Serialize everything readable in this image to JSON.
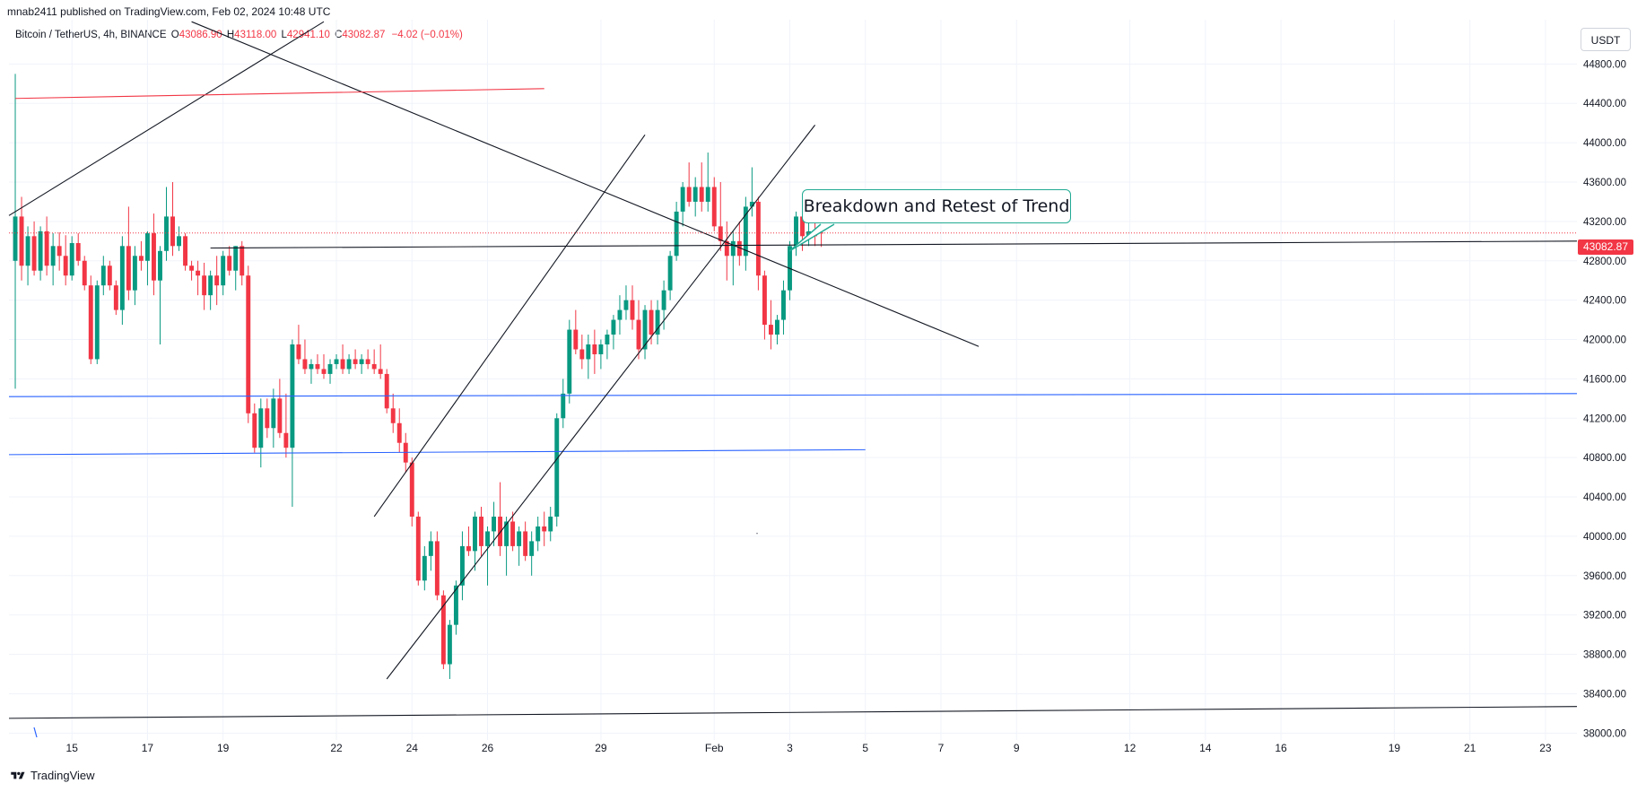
{
  "header": {
    "publisher": "mnab2411 published on TradingView.com, Feb 02, 2024 10:48 UTC",
    "symbol": "Bitcoin / TetherUS, 4h, BINANCE",
    "open_label": "O",
    "open_value": "43086.90",
    "high_label": "H",
    "high_value": "43118.00",
    "low_label": "L",
    "low_value": "42941.10",
    "close_label": "C",
    "close_value": "43082.87",
    "change": "−4.02 (−0.01%)"
  },
  "currency": "USDT",
  "last_price": "43082.87",
  "annotation": "Breakdown and Retest of Trend",
  "footer": {
    "brand": "TradingView"
  },
  "colors": {
    "up": "#089981",
    "down": "#f23645",
    "blue_line": "#2962ff",
    "red_line": "#f23645",
    "trend": "#131722",
    "callout_border": "#22ab94"
  },
  "icons": [
    "tradingview-logo-icon"
  ],
  "chart_data": {
    "type": "candlestick",
    "timeframe": "4h",
    "y_axis": {
      "range": [
        37930,
        45250
      ],
      "ticks": [
        38000,
        38400,
        38800,
        39200,
        39600,
        40000,
        40400,
        40800,
        41200,
        41600,
        42000,
        42400,
        42800,
        43200,
        43600,
        44000,
        44400,
        44800
      ],
      "tick_labels": [
        "38000.00",
        "38400.00",
        "38800.00",
        "39200.00",
        "39600.00",
        "40000.00",
        "40400.00",
        "40800.00",
        "41200.00",
        "41600.00",
        "42000.00",
        "42400.00",
        "42800.00",
        "43200.00",
        "43600.00",
        "44000.00",
        "44400.00",
        "44800.00"
      ]
    },
    "x_axis": {
      "range": [
        "2024-01-13T08:00",
        "2024-02-23T20:00"
      ],
      "tick_dates": [
        "2024-01-15T00:00",
        "2024-01-17T00:00",
        "2024-01-19T00:00",
        "2024-01-22T00:00",
        "2024-01-24T00:00",
        "2024-01-26T00:00",
        "2024-01-29T00:00",
        "2024-02-01T00:00",
        "2024-02-03T00:00",
        "2024-02-05T00:00",
        "2024-02-07T00:00",
        "2024-02-09T00:00",
        "2024-02-12T00:00",
        "2024-02-14T00:00",
        "2024-02-16T00:00",
        "2024-02-19T00:00",
        "2024-02-21T00:00",
        "2024-02-23T00:00"
      ],
      "tick_labels": [
        "15",
        "17",
        "19",
        "22",
        "24",
        "26",
        "29",
        "Feb",
        "3",
        "5",
        "7",
        "9",
        "12",
        "14",
        "16",
        "19",
        "21",
        "23"
      ]
    },
    "candles": {
      "start": "2024-01-13T12:00",
      "interval_hours": 4,
      "ohlc": [
        [
          42800,
          44700,
          41500,
          43250
        ],
        [
          43250,
          43450,
          42600,
          42750
        ],
        [
          42750,
          43150,
          42550,
          43050
        ],
        [
          43050,
          43200,
          42650,
          42700
        ],
        [
          42700,
          43150,
          42600,
          43100
        ],
        [
          43100,
          43250,
          42650,
          42750
        ],
        [
          42750,
          43080,
          42550,
          42950
        ],
        [
          42950,
          43090,
          42700,
          42850
        ],
        [
          42850,
          43060,
          42550,
          42650
        ],
        [
          42650,
          43050,
          42600,
          42980
        ],
        [
          42980,
          43080,
          42750,
          42800
        ],
        [
          42800,
          42850,
          42500,
          42550
        ],
        [
          42550,
          42650,
          41750,
          41800
        ],
        [
          41800,
          42600,
          41750,
          42550
        ],
        [
          42550,
          42850,
          42450,
          42750
        ],
        [
          42750,
          42800,
          42500,
          42550
        ],
        [
          42550,
          42600,
          42250,
          42300
        ],
        [
          42300,
          43050,
          42150,
          42950
        ],
        [
          42950,
          43350,
          42400,
          42500
        ],
        [
          42500,
          42950,
          42350,
          42850
        ],
        [
          42850,
          43000,
          42700,
          42800
        ],
        [
          42800,
          43100,
          42550,
          43080
        ],
        [
          43080,
          43280,
          42450,
          42600
        ],
        [
          42600,
          42950,
          41950,
          42900
        ],
        [
          42900,
          43550,
          42800,
          43250
        ],
        [
          43250,
          43600,
          42850,
          42950
        ],
        [
          42950,
          43150,
          42900,
          43050
        ],
        [
          43050,
          43080,
          42700,
          42750
        ],
        [
          42750,
          42800,
          42600,
          42700
        ],
        [
          42700,
          42800,
          42450,
          42650
        ],
        [
          42650,
          42780,
          42300,
          42450
        ],
        [
          42450,
          42700,
          42300,
          42650
        ],
        [
          42650,
          42850,
          42350,
          42550
        ],
        [
          42550,
          42900,
          42450,
          42850
        ],
        [
          42850,
          42950,
          42650,
          42700
        ],
        [
          42700,
          42950,
          42500,
          42950
        ],
        [
          42950,
          43000,
          42550,
          42650
        ],
        [
          42650,
          42750,
          41150,
          41250
        ],
        [
          41250,
          41350,
          40850,
          40900
        ],
        [
          40900,
          41400,
          40700,
          41300
        ],
        [
          41300,
          41400,
          41000,
          41100
        ],
        [
          41100,
          41500,
          40900,
          41400
        ],
        [
          41400,
          41600,
          41000,
          41050
        ],
        [
          41050,
          41450,
          40800,
          40900
        ],
        [
          40900,
          42000,
          40300,
          41950
        ],
        [
          41950,
          42150,
          41750,
          41800
        ],
        [
          41800,
          42000,
          41650,
          41700
        ],
        [
          41700,
          41800,
          41550,
          41750
        ],
        [
          41750,
          41850,
          41650,
          41700
        ],
        [
          41700,
          41850,
          41600,
          41650
        ],
        [
          41650,
          41800,
          41550,
          41750
        ],
        [
          41750,
          41850,
          41700,
          41800
        ],
        [
          41800,
          41950,
          41650,
          41700
        ],
        [
          41700,
          41850,
          41650,
          41800
        ],
        [
          41800,
          41900,
          41700,
          41750
        ],
        [
          41750,
          41850,
          41650,
          41800
        ],
        [
          41800,
          41900,
          41700,
          41750
        ],
        [
          41750,
          41900,
          41650,
          41700
        ],
        [
          41700,
          41950,
          41600,
          41650
        ],
        [
          41650,
          41700,
          41250,
          41300
        ],
        [
          41300,
          41450,
          41050,
          41150
        ],
        [
          41150,
          41300,
          40850,
          40950
        ],
        [
          40950,
          41050,
          40650,
          40750
        ],
        [
          40750,
          40800,
          40100,
          40200
        ],
        [
          40200,
          40250,
          39500,
          39550
        ],
        [
          39550,
          39900,
          39450,
          39800
        ],
        [
          39800,
          40050,
          39650,
          39950
        ],
        [
          39950,
          40050,
          39350,
          39400
        ],
        [
          39400,
          39450,
          38650,
          38700
        ],
        [
          38700,
          39150,
          38550,
          39100
        ],
        [
          39100,
          39550,
          39000,
          39500
        ],
        [
          39500,
          40050,
          39350,
          39900
        ],
        [
          39900,
          40100,
          39800,
          39850
        ],
        [
          39850,
          40250,
          39650,
          40200
        ],
        [
          40200,
          40300,
          39800,
          39900
        ],
        [
          39900,
          40100,
          39500,
          40050
        ],
        [
          40050,
          40350,
          39900,
          40200
        ],
        [
          40200,
          40550,
          39800,
          39900
        ],
        [
          39900,
          40200,
          39600,
          40150
        ],
        [
          40150,
          40250,
          39850,
          39900
        ],
        [
          39900,
          40100,
          39700,
          40050
        ],
        [
          40050,
          40150,
          39750,
          39800
        ],
        [
          39800,
          40050,
          39600,
          39950
        ],
        [
          39950,
          40200,
          39850,
          40100
        ],
        [
          40100,
          40250,
          39900,
          40050
        ],
        [
          40050,
          40300,
          39950,
          40200
        ],
        [
          40200,
          41250,
          40100,
          41200
        ],
        [
          41200,
          41600,
          41100,
          41450
        ],
        [
          41450,
          42200,
          41350,
          42100
        ],
        [
          42100,
          42300,
          41850,
          41900
        ],
        [
          41900,
          42050,
          41700,
          41800
        ],
        [
          41800,
          42050,
          41600,
          41950
        ],
        [
          41950,
          42100,
          41650,
          41850
        ],
        [
          41850,
          42000,
          41700,
          41950
        ],
        [
          41950,
          42100,
          41800,
          42050
        ],
        [
          42050,
          42250,
          41900,
          42200
        ],
        [
          42200,
          42450,
          42050,
          42300
        ],
        [
          42300,
          42550,
          42200,
          42400
        ],
        [
          42400,
          42550,
          42100,
          42200
        ],
        [
          42200,
          42400,
          41800,
          41900
        ],
        [
          41900,
          42350,
          41800,
          42300
        ],
        [
          42300,
          42400,
          41950,
          42050
        ],
        [
          42050,
          42400,
          41950,
          42300
        ],
        [
          42300,
          42600,
          42100,
          42500
        ],
        [
          42500,
          42900,
          42400,
          42850
        ],
        [
          42850,
          43400,
          42800,
          43300
        ],
        [
          43300,
          43600,
          43150,
          43550
        ],
        [
          43550,
          43800,
          43350,
          43400
        ],
        [
          43400,
          43650,
          43250,
          43550
        ],
        [
          43550,
          43800,
          43300,
          43400
        ],
        [
          43400,
          43900,
          43300,
          43550
        ],
        [
          43550,
          43650,
          43100,
          43150
        ],
        [
          43150,
          43600,
          42900,
          43000
        ],
        [
          43000,
          43200,
          42600,
          42850
        ],
        [
          42850,
          43100,
          42550,
          43000
        ],
        [
          43000,
          43200,
          42750,
          42850
        ],
        [
          42850,
          43450,
          42700,
          43350
        ],
        [
          43350,
          43750,
          43250,
          43400
        ],
        [
          43400,
          43450,
          42500,
          42650
        ],
        [
          42650,
          42700,
          42000,
          42150
        ],
        [
          42150,
          42400,
          41900,
          42050
        ],
        [
          42050,
          42250,
          41950,
          42200
        ],
        [
          42200,
          42600,
          42050,
          42500
        ],
        [
          42500,
          43000,
          42400,
          42950
        ],
        [
          42950,
          43300,
          42850,
          43250
        ],
        [
          43250,
          43400,
          42900,
          43050
        ],
        [
          43050,
          43300,
          42950,
          43100
        ],
        [
          43100,
          43200,
          42950,
          43050
        ],
        [
          43086.9,
          43118,
          42941.1,
          43082.87
        ]
      ]
    },
    "last_price_line": 43082.87,
    "annotation_text": "Breakdown and Retest of Trend",
    "drawings": [
      {
        "kind": "trend_line",
        "color": "#131722",
        "p1": [
          "2024-01-13T08:00",
          43260
        ],
        "p2": [
          "2024-01-21T16:00",
          45230
        ]
      },
      {
        "kind": "trend_line",
        "color": "#131722",
        "p1": [
          "2024-01-18T04:00",
          45230
        ],
        "p2": [
          "2024-02-08T00:00",
          41930
        ]
      },
      {
        "kind": "trend_line",
        "color": "#f23645",
        "p1": [
          "2024-01-13T12:00",
          44450
        ],
        "p2": [
          "2024-01-27T12:00",
          44550
        ]
      },
      {
        "kind": "trend_line",
        "color": "#131722",
        "p1": [
          "2024-01-18T16:00",
          42930
        ],
        "p2": [
          "2024-02-23T20:00",
          43000
        ]
      },
      {
        "kind": "trend_line",
        "color": "#2962ff",
        "p1": [
          "2024-01-13T08:00",
          41420
        ],
        "p2": [
          "2024-02-23T20:00",
          41450
        ]
      },
      {
        "kind": "trend_line",
        "color": "#2962ff",
        "p1": [
          "2024-01-13T08:00",
          40830
        ],
        "p2": [
          "2024-02-05T00:00",
          40880
        ]
      },
      {
        "kind": "trend_line",
        "color": "#131722",
        "p1": [
          "2024-01-13T08:00",
          38150
        ],
        "p2": [
          "2024-02-23T20:00",
          38270
        ]
      },
      {
        "kind": "trend_line",
        "color": "#131722",
        "p1": [
          "2024-01-23T00:00",
          40200
        ],
        "p2": [
          "2024-01-30T04:00",
          44080
        ]
      },
      {
        "kind": "trend_line",
        "color": "#131722",
        "p1": [
          "2024-01-23T08:00",
          38550
        ],
        "p2": [
          "2024-02-03T16:00",
          44180
        ]
      }
    ]
  }
}
